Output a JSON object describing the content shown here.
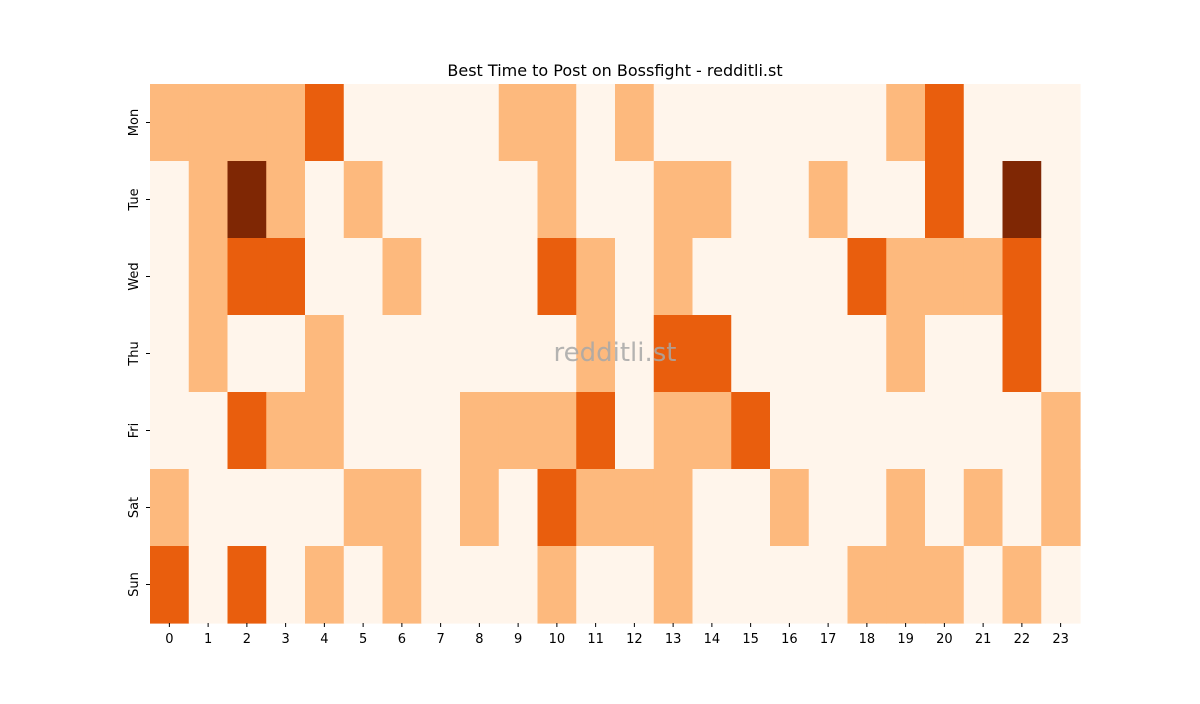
{
  "chart_data": {
    "type": "heatmap",
    "title": "Best Time to Post on Bossfight - redditli.st",
    "watermark": "redditli.st",
    "xlabel": "",
    "ylabel": "",
    "x": [
      0,
      1,
      2,
      3,
      4,
      5,
      6,
      7,
      8,
      9,
      10,
      11,
      12,
      13,
      14,
      15,
      16,
      17,
      18,
      19,
      20,
      21,
      22,
      23
    ],
    "y": [
      "Mon",
      "Tue",
      "Wed",
      "Thu",
      "Fri",
      "Sat",
      "Sun"
    ],
    "colormap": "Oranges",
    "legend": "none",
    "grid": false,
    "levels": {
      "0": "#fff5eb",
      "1": "#fdb97d",
      "2": "#e95e0d",
      "3": "#7f2704"
    },
    "values": [
      [
        1,
        1,
        1,
        1,
        2,
        0,
        0,
        0,
        0,
        1,
        1,
        0,
        1,
        0,
        0,
        0,
        0,
        0,
        0,
        1,
        2,
        0,
        0,
        0
      ],
      [
        0,
        1,
        3,
        1,
        0,
        1,
        0,
        0,
        0,
        0,
        1,
        0,
        0,
        1,
        1,
        0,
        0,
        1,
        0,
        0,
        2,
        0,
        3,
        0
      ],
      [
        0,
        1,
        2,
        2,
        0,
        0,
        1,
        0,
        0,
        0,
        2,
        1,
        0,
        1,
        0,
        0,
        0,
        0,
        2,
        1,
        1,
        1,
        2,
        0
      ],
      [
        0,
        1,
        0,
        0,
        1,
        0,
        0,
        0,
        0,
        0,
        0,
        1,
        0,
        2,
        2,
        0,
        0,
        0,
        0,
        1,
        0,
        0,
        2,
        0
      ],
      [
        0,
        0,
        2,
        1,
        1,
        0,
        0,
        0,
        1,
        1,
        1,
        2,
        0,
        1,
        1,
        2,
        0,
        0,
        0,
        0,
        0,
        0,
        0,
        1
      ],
      [
        1,
        0,
        0,
        0,
        0,
        1,
        1,
        0,
        1,
        0,
        2,
        1,
        1,
        1,
        0,
        0,
        1,
        0,
        0,
        1,
        0,
        1,
        0,
        1
      ],
      [
        2,
        0,
        2,
        0,
        1,
        0,
        1,
        0,
        0,
        0,
        1,
        0,
        0,
        1,
        0,
        0,
        0,
        0,
        1,
        1,
        1,
        0,
        1,
        0
      ]
    ]
  }
}
